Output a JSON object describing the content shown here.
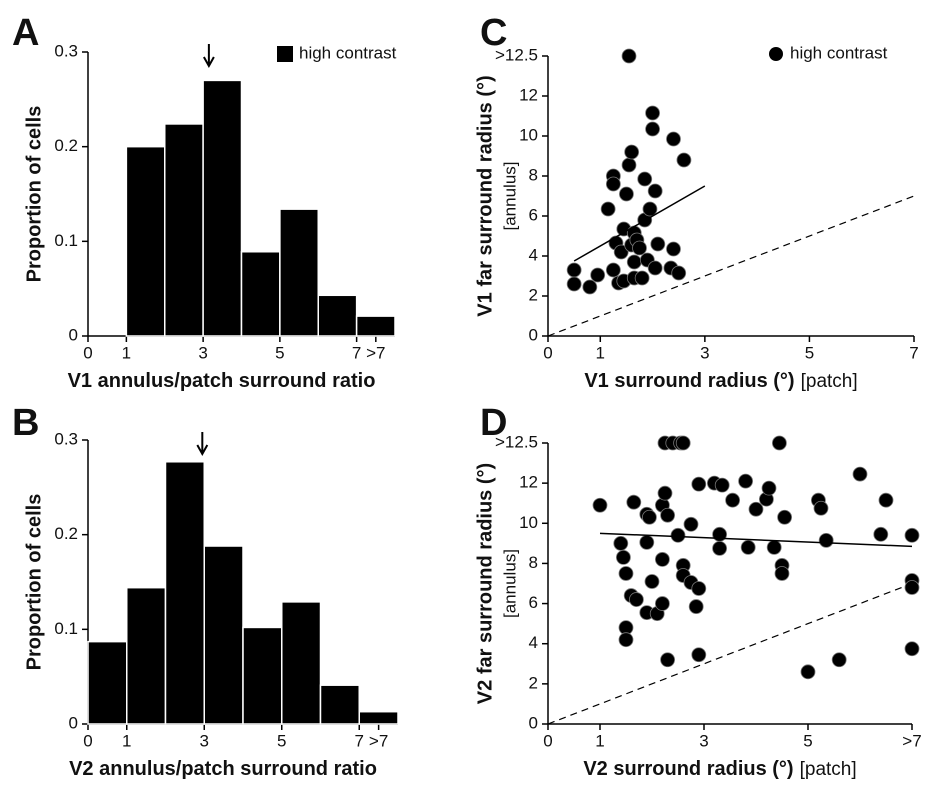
{
  "chart_data": [
    {
      "type": "histogram",
      "panel": "A",
      "xlabel": "V1 annulus/patch surround ratio",
      "ylabel": "Proportion of cells",
      "bins": [
        1,
        2,
        3,
        4,
        5,
        6,
        7,
        8
      ],
      "series": [
        {
          "name": "high contrast",
          "color": "#000000",
          "values": [
            0.2,
            0.224,
            0.27,
            0.089,
            0.134,
            0.043,
            0.021
          ]
        }
      ],
      "arrow_x": 3.15,
      "xlim": [
        0,
        8
      ],
      "xticks": [
        0,
        1,
        3,
        5,
        7,
        {
          "value": 7.5,
          "label": ">7"
        }
      ],
      "ylim": [
        0,
        0.3
      ],
      "yticks": [
        0,
        0.1,
        0.2,
        0.3
      ]
    },
    {
      "type": "histogram",
      "panel": "B",
      "xlabel": "V2 annulus/patch surround ratio",
      "ylabel": "Proportion of cells",
      "bins": [
        0,
        1,
        2,
        3,
        4,
        5,
        6,
        7,
        8
      ],
      "series": [
        {
          "color": "#000000",
          "values": [
            0.087,
            0.144,
            0.277,
            0.188,
            0.102,
            0.129,
            0.041,
            0.013
          ]
        }
      ],
      "arrow_x": 2.95,
      "xlim": [
        0,
        8
      ],
      "xticks": [
        0,
        1,
        3,
        5,
        7,
        {
          "value": 7.5,
          "label": ">7"
        }
      ],
      "ylim": [
        0,
        0.3
      ],
      "yticks": [
        0,
        0.1,
        0.2,
        0.3
      ]
    },
    {
      "type": "scatter",
      "panel": "C",
      "xlabel": "V1 surround radius (°)",
      "xlabel_note": "[patch]",
      "ylabel": "V1 far surround radius (°)",
      "ylabel_note": "[annulus]",
      "series": [
        {
          "name": "high contrast",
          "color": "#000000",
          "x": [
            0.5,
            0.5,
            0.8,
            0.95,
            1.15,
            1.25,
            1.25,
            1.3,
            1.25,
            1.35,
            1.4,
            1.45,
            1.45,
            1.5,
            1.55,
            1.6,
            1.6,
            1.65,
            1.65,
            1.65,
            1.7,
            1.75,
            1.8,
            1.85,
            1.85,
            1.9,
            1.95,
            2.0,
            2.0,
            2.05,
            2.05,
            2.1,
            2.35,
            2.4,
            2.4,
            2.5,
            2.6,
            1.55
          ],
          "y": [
            3.3,
            2.6,
            2.45,
            3.05,
            6.35,
            8.0,
            7.6,
            4.65,
            3.3,
            2.65,
            4.2,
            5.35,
            2.75,
            7.1,
            8.55,
            9.2,
            4.55,
            5.15,
            2.9,
            3.7,
            4.8,
            4.4,
            2.9,
            7.85,
            5.8,
            3.8,
            6.35,
            11.15,
            10.35,
            7.25,
            3.4,
            4.6,
            3.4,
            4.35,
            9.85,
            3.15,
            8.8,
            14
          ]
        }
      ],
      "fit_line": {
        "x": [
          0.5,
          3
        ],
        "y": [
          3.75,
          7.5
        ]
      },
      "unity_line": {
        "x": [
          0,
          7
        ],
        "y": [
          0,
          7
        ]
      },
      "xlim": [
        0,
        7
      ],
      "xticks": [
        0,
        1,
        3,
        5,
        7
      ],
      "ylim": [
        0,
        14
      ],
      "yticks": [
        0,
        2,
        4,
        6,
        8,
        10,
        12,
        {
          "value": 14,
          "label": ">12.5"
        }
      ]
    },
    {
      "type": "scatter",
      "panel": "D",
      "xlabel": "V2 surround radius (°)",
      "xlabel_note": "[patch]",
      "ylabel": "V2 far surround radius (°)",
      "ylabel_note": "[annulus]",
      "series": [
        {
          "color": "#000000",
          "x": [
            1.0,
            1.4,
            1.45,
            1.5,
            1.6,
            1.7,
            1.5,
            1.5,
            1.65,
            1.9,
            1.95,
            1.9,
            2.0,
            1.9,
            2.1,
            2.2,
            2.2,
            2.2,
            2.25,
            2.3,
            2.25,
            2.4,
            2.55,
            2.6,
            2.3,
            2.5,
            2.6,
            2.6,
            2.75,
            2.75,
            2.85,
            2.9,
            2.9,
            2.9,
            3.2,
            3.35,
            3.3,
            3.3,
            3.55,
            3.8,
            3.85,
            4.0,
            4.2,
            4.25,
            4.35,
            4.55,
            4.5,
            4.5,
            4.45,
            5.0,
            5.2,
            5.25,
            5.35,
            5.6,
            6.0,
            6.5,
            6.4,
            7.0,
            7.0,
            7.0,
            7.0
          ],
          "y": [
            10.9,
            9.0,
            8.3,
            7.5,
            6.4,
            6.2,
            4.8,
            4.2,
            11.05,
            10.45,
            10.3,
            9.05,
            7.1,
            5.55,
            5.5,
            8.2,
            6.0,
            10.9,
            11.5,
            10.4,
            14,
            14,
            14,
            14,
            3.2,
            9.4,
            7.9,
            7.4,
            9.95,
            7.05,
            5.85,
            6.75,
            3.45,
            11.95,
            12.0,
            11.9,
            9.45,
            8.75,
            11.15,
            12.1,
            8.8,
            10.7,
            11.2,
            11.75,
            8.8,
            10.3,
            7.9,
            7.5,
            14,
            2.6,
            11.15,
            10.75,
            9.15,
            3.2,
            12.45,
            11.15,
            9.45,
            9.4,
            7.15,
            6.8,
            3.75
          ]
        }
      ],
      "fit_line": {
        "x": [
          1,
          7
        ],
        "y": [
          9.5,
          8.85
        ]
      },
      "unity_line": {
        "x": [
          0,
          7
        ],
        "y": [
          0,
          7
        ]
      },
      "xlim": [
        0,
        7
      ],
      "xticks": [
        0,
        1,
        3,
        5,
        {
          "value": 7,
          "label": ">7"
        }
      ],
      "ylim": [
        0,
        14
      ],
      "yticks": [
        0,
        2,
        4,
        6,
        8,
        10,
        12,
        {
          "value": 14,
          "label": ">12.5"
        }
      ]
    }
  ]
}
